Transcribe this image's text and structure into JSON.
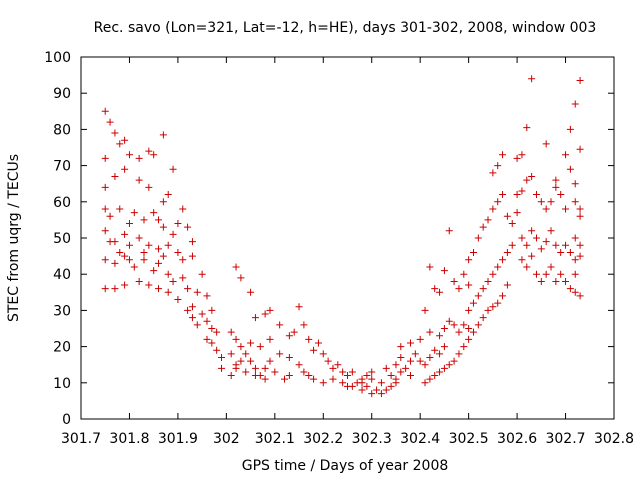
{
  "chart_data": {
    "type": "scatter",
    "title": "Rec. savo (Lon=321, Lat=-12, h=HE), days 301-302, 2008, window 003",
    "xlabel": "GPS time / Days of year 2008",
    "ylabel": "STEC from uqrg / TECUs",
    "xlim": [
      301.7,
      302.8
    ],
    "ylim": [
      0,
      100
    ],
    "x_ticks": [
      301.7,
      301.8,
      301.9,
      302,
      302.1,
      302.2,
      302.3,
      302.4,
      302.5,
      302.6,
      302.7,
      302.8
    ],
    "x_tick_labels": [
      "301.7",
      "301.8",
      "301.9",
      "302",
      "302.1",
      "302.2",
      "302.3",
      "302.4",
      "302.5",
      "302.6",
      "302.7",
      "302.8"
    ],
    "y_ticks": [
      0,
      10,
      20,
      30,
      40,
      50,
      60,
      70,
      80,
      90,
      100
    ],
    "y_tick_labels": [
      "0",
      "10",
      "20",
      "30",
      "40",
      "50",
      "60",
      "70",
      "80",
      "90",
      "100"
    ],
    "grid": false,
    "marker": "+",
    "color": "#cc0000",
    "points": [
      [
        301.75,
        85
      ],
      [
        301.76,
        82
      ],
      [
        301.75,
        72
      ],
      [
        301.77,
        79
      ],
      [
        301.78,
        76
      ],
      [
        301.79,
        77
      ],
      [
        301.8,
        73
      ],
      [
        301.82,
        72
      ],
      [
        301.84,
        74
      ],
      [
        301.85,
        73
      ],
      [
        301.87,
        78.5
      ],
      [
        301.89,
        69
      ],
      [
        301.75,
        64
      ],
      [
        301.77,
        67
      ],
      [
        301.79,
        69
      ],
      [
        301.82,
        66
      ],
      [
        301.84,
        64
      ],
      [
        301.87,
        60
      ],
      [
        301.88,
        62
      ],
      [
        301.91,
        58
      ],
      [
        301.75,
        58
      ],
      [
        301.76,
        56
      ],
      [
        301.78,
        58
      ],
      [
        301.8,
        54
      ],
      [
        301.81,
        57
      ],
      [
        301.83,
        55
      ],
      [
        301.85,
        57
      ],
      [
        301.86,
        55
      ],
      [
        301.87,
        53
      ],
      [
        301.89,
        51
      ],
      [
        301.9,
        54
      ],
      [
        301.92,
        53
      ],
      [
        301.93,
        49
      ],
      [
        301.75,
        52
      ],
      [
        301.77,
        49
      ],
      [
        301.79,
        51
      ],
      [
        301.8,
        48
      ],
      [
        301.82,
        50
      ],
      [
        301.83,
        46
      ],
      [
        301.84,
        48
      ],
      [
        301.86,
        47
      ],
      [
        301.87,
        45
      ],
      [
        301.88,
        48
      ],
      [
        301.9,
        46
      ],
      [
        301.91,
        44
      ],
      [
        301.93,
        45
      ],
      [
        301.95,
        40
      ],
      [
        301.76,
        49
      ],
      [
        301.78,
        46
      ],
      [
        301.8,
        44
      ],
      [
        301.81,
        42
      ],
      [
        301.83,
        44
      ],
      [
        301.85,
        41
      ],
      [
        301.86,
        43
      ],
      [
        301.88,
        40
      ],
      [
        301.89,
        38
      ],
      [
        301.91,
        39
      ],
      [
        301.92,
        36
      ],
      [
        301.94,
        35
      ],
      [
        301.96,
        34
      ],
      [
        301.75,
        44
      ],
      [
        301.77,
        43
      ],
      [
        301.79,
        45
      ],
      [
        301.82,
        38
      ],
      [
        301.84,
        37
      ],
      [
        301.86,
        36
      ],
      [
        301.88,
        35
      ],
      [
        301.9,
        33
      ],
      [
        301.92,
        30
      ],
      [
        301.93,
        31
      ],
      [
        301.95,
        29
      ],
      [
        301.96,
        27
      ],
      [
        301.97,
        25
      ],
      [
        301.75,
        36
      ],
      [
        301.77,
        36
      ],
      [
        301.79,
        37
      ],
      [
        301.93,
        28
      ],
      [
        301.94,
        26
      ],
      [
        301.96,
        22
      ],
      [
        301.97,
        21
      ],
      [
        301.98,
        19
      ],
      [
        301.99,
        17
      ],
      [
        301.98,
        24
      ],
      [
        301.97,
        30
      ],
      [
        301.99,
        14
      ],
      [
        302.01,
        24
      ],
      [
        302.02,
        22
      ],
      [
        302.03,
        20
      ],
      [
        302.04,
        18
      ],
      [
        302.05,
        16
      ],
      [
        302.06,
        14
      ],
      [
        302.07,
        12
      ],
      [
        302.08,
        11
      ],
      [
        302.01,
        12
      ],
      [
        302.02,
        14
      ],
      [
        302.03,
        16
      ],
      [
        302.04,
        13
      ],
      [
        302.06,
        12
      ],
      [
        302.08,
        14
      ],
      [
        302.09,
        16
      ],
      [
        302.1,
        13
      ],
      [
        302.12,
        11
      ],
      [
        302.13,
        12
      ],
      [
        302.01,
        18
      ],
      [
        302.02,
        15
      ],
      [
        302.05,
        21
      ],
      [
        302.07,
        20
      ],
      [
        302.09,
        22
      ],
      [
        302.11,
        18
      ],
      [
        302.13,
        17
      ],
      [
        302.15,
        15
      ],
      [
        302.02,
        42
      ],
      [
        302.03,
        39
      ],
      [
        302.05,
        35
      ],
      [
        302.06,
        28
      ],
      [
        302.08,
        29
      ],
      [
        302.09,
        30
      ],
      [
        302.11,
        26
      ],
      [
        302.13,
        23
      ],
      [
        302.14,
        24
      ],
      [
        302.15,
        31
      ],
      [
        302.16,
        26
      ],
      [
        302.17,
        22
      ],
      [
        302.18,
        19
      ],
      [
        302.19,
        21
      ],
      [
        302.2,
        18
      ],
      [
        302.21,
        16
      ],
      [
        302.22,
        14
      ],
      [
        302.23,
        15
      ],
      [
        302.24,
        13
      ],
      [
        302.25,
        12
      ],
      [
        302.26,
        13
      ],
      [
        302.16,
        13
      ],
      [
        302.17,
        12
      ],
      [
        302.18,
        11
      ],
      [
        302.2,
        10
      ],
      [
        302.22,
        11
      ],
      [
        302.24,
        10
      ],
      [
        302.25,
        9
      ],
      [
        302.27,
        10
      ],
      [
        302.28,
        11
      ],
      [
        302.29,
        12
      ],
      [
        302.3,
        13
      ],
      [
        302.26,
        9
      ],
      [
        302.28,
        8
      ],
      [
        302.29,
        9
      ],
      [
        302.3,
        7
      ],
      [
        302.31,
        8
      ],
      [
        302.32,
        7
      ],
      [
        302.33,
        8
      ],
      [
        302.34,
        9
      ],
      [
        302.35,
        10
      ],
      [
        302.28,
        10
      ],
      [
        302.3,
        11
      ],
      [
        302.32,
        10
      ],
      [
        302.34,
        12
      ],
      [
        302.35,
        11
      ],
      [
        302.36,
        13
      ],
      [
        302.37,
        14
      ],
      [
        302.38,
        12
      ],
      [
        302.33,
        14
      ],
      [
        302.35,
        15
      ],
      [
        302.36,
        17
      ],
      [
        302.38,
        16
      ],
      [
        302.39,
        18
      ],
      [
        302.4,
        16
      ],
      [
        302.41,
        15
      ],
      [
        302.42,
        17
      ],
      [
        302.43,
        19
      ],
      [
        302.44,
        18
      ],
      [
        302.45,
        20
      ],
      [
        302.36,
        20
      ],
      [
        302.38,
        21
      ],
      [
        302.4,
        22
      ],
      [
        302.42,
        24
      ],
      [
        302.44,
        23
      ],
      [
        302.45,
        25
      ],
      [
        302.46,
        27
      ],
      [
        302.47,
        26
      ],
      [
        302.48,
        24
      ],
      [
        302.49,
        26
      ],
      [
        302.5,
        25
      ],
      [
        302.41,
        30
      ],
      [
        302.42,
        42
      ],
      [
        302.43,
        36
      ],
      [
        302.44,
        35
      ],
      [
        302.45,
        41
      ],
      [
        302.46,
        52
      ],
      [
        302.47,
        38
      ],
      [
        302.48,
        36
      ],
      [
        302.49,
        40
      ],
      [
        302.5,
        37
      ],
      [
        302.5,
        30
      ],
      [
        302.51,
        32
      ],
      [
        302.52,
        34
      ],
      [
        302.53,
        36
      ],
      [
        302.54,
        38
      ],
      [
        302.55,
        40
      ],
      [
        302.56,
        42
      ],
      [
        302.57,
        44
      ],
      [
        302.58,
        46
      ],
      [
        302.59,
        48
      ],
      [
        302.5,
        44
      ],
      [
        302.51,
        46
      ],
      [
        302.52,
        50
      ],
      [
        302.53,
        53
      ],
      [
        302.54,
        55
      ],
      [
        302.55,
        58
      ],
      [
        302.56,
        60
      ],
      [
        302.57,
        62
      ],
      [
        302.58,
        56
      ],
      [
        302.59,
        54
      ],
      [
        302.6,
        57
      ],
      [
        302.6,
        62
      ],
      [
        302.61,
        63
      ],
      [
        302.62,
        66
      ],
      [
        302.63,
        67
      ],
      [
        302.64,
        62
      ],
      [
        302.65,
        60
      ],
      [
        302.66,
        58
      ],
      [
        302.67,
        60
      ],
      [
        302.68,
        64
      ],
      [
        302.69,
        62
      ],
      [
        302.7,
        58
      ],
      [
        302.61,
        50
      ],
      [
        302.62,
        48
      ],
      [
        302.63,
        52
      ],
      [
        302.64,
        50
      ],
      [
        302.65,
        47
      ],
      [
        302.66,
        49
      ],
      [
        302.67,
        52
      ],
      [
        302.68,
        48
      ],
      [
        302.69,
        46
      ],
      [
        302.7,
        48
      ],
      [
        302.71,
        46
      ],
      [
        302.72,
        44
      ],
      [
        302.73,
        48
      ],
      [
        302.61,
        44
      ],
      [
        302.62,
        42
      ],
      [
        302.63,
        45
      ],
      [
        302.64,
        40
      ],
      [
        302.65,
        38
      ],
      [
        302.66,
        40
      ],
      [
        302.67,
        42
      ],
      [
        302.68,
        38
      ],
      [
        302.69,
        40
      ],
      [
        302.7,
        38
      ],
      [
        302.71,
        36
      ],
      [
        302.72,
        35
      ],
      [
        302.73,
        34
      ],
      [
        302.55,
        68
      ],
      [
        302.56,
        70
      ],
      [
        302.57,
        73
      ],
      [
        302.6,
        72
      ],
      [
        302.61,
        73
      ],
      [
        302.62,
        80.5
      ],
      [
        302.63,
        94
      ],
      [
        302.66,
        76
      ],
      [
        302.68,
        66
      ],
      [
        302.7,
        73
      ],
      [
        302.71,
        80
      ],
      [
        302.72,
        87
      ],
      [
        302.73,
        93.5
      ],
      [
        302.73,
        74.5
      ],
      [
        302.72,
        65
      ],
      [
        302.71,
        69
      ],
      [
        302.73,
        58
      ],
      [
        302.72,
        60
      ],
      [
        302.73,
        56
      ],
      [
        302.72,
        50
      ],
      [
        302.73,
        45
      ],
      [
        302.72,
        40
      ],
      [
        302.58,
        37
      ],
      [
        302.57,
        34
      ],
      [
        302.56,
        32
      ],
      [
        302.55,
        31
      ],
      [
        302.54,
        30
      ],
      [
        302.53,
        28
      ],
      [
        302.52,
        26
      ],
      [
        302.51,
        24
      ],
      [
        302.5,
        22
      ],
      [
        302.49,
        20
      ],
      [
        302.48,
        18
      ],
      [
        302.47,
        16
      ],
      [
        302.46,
        15
      ],
      [
        302.45,
        14
      ],
      [
        302.44,
        13
      ],
      [
        302.43,
        12
      ],
      [
        302.42,
        11
      ],
      [
        302.41,
        10
      ]
    ]
  }
}
